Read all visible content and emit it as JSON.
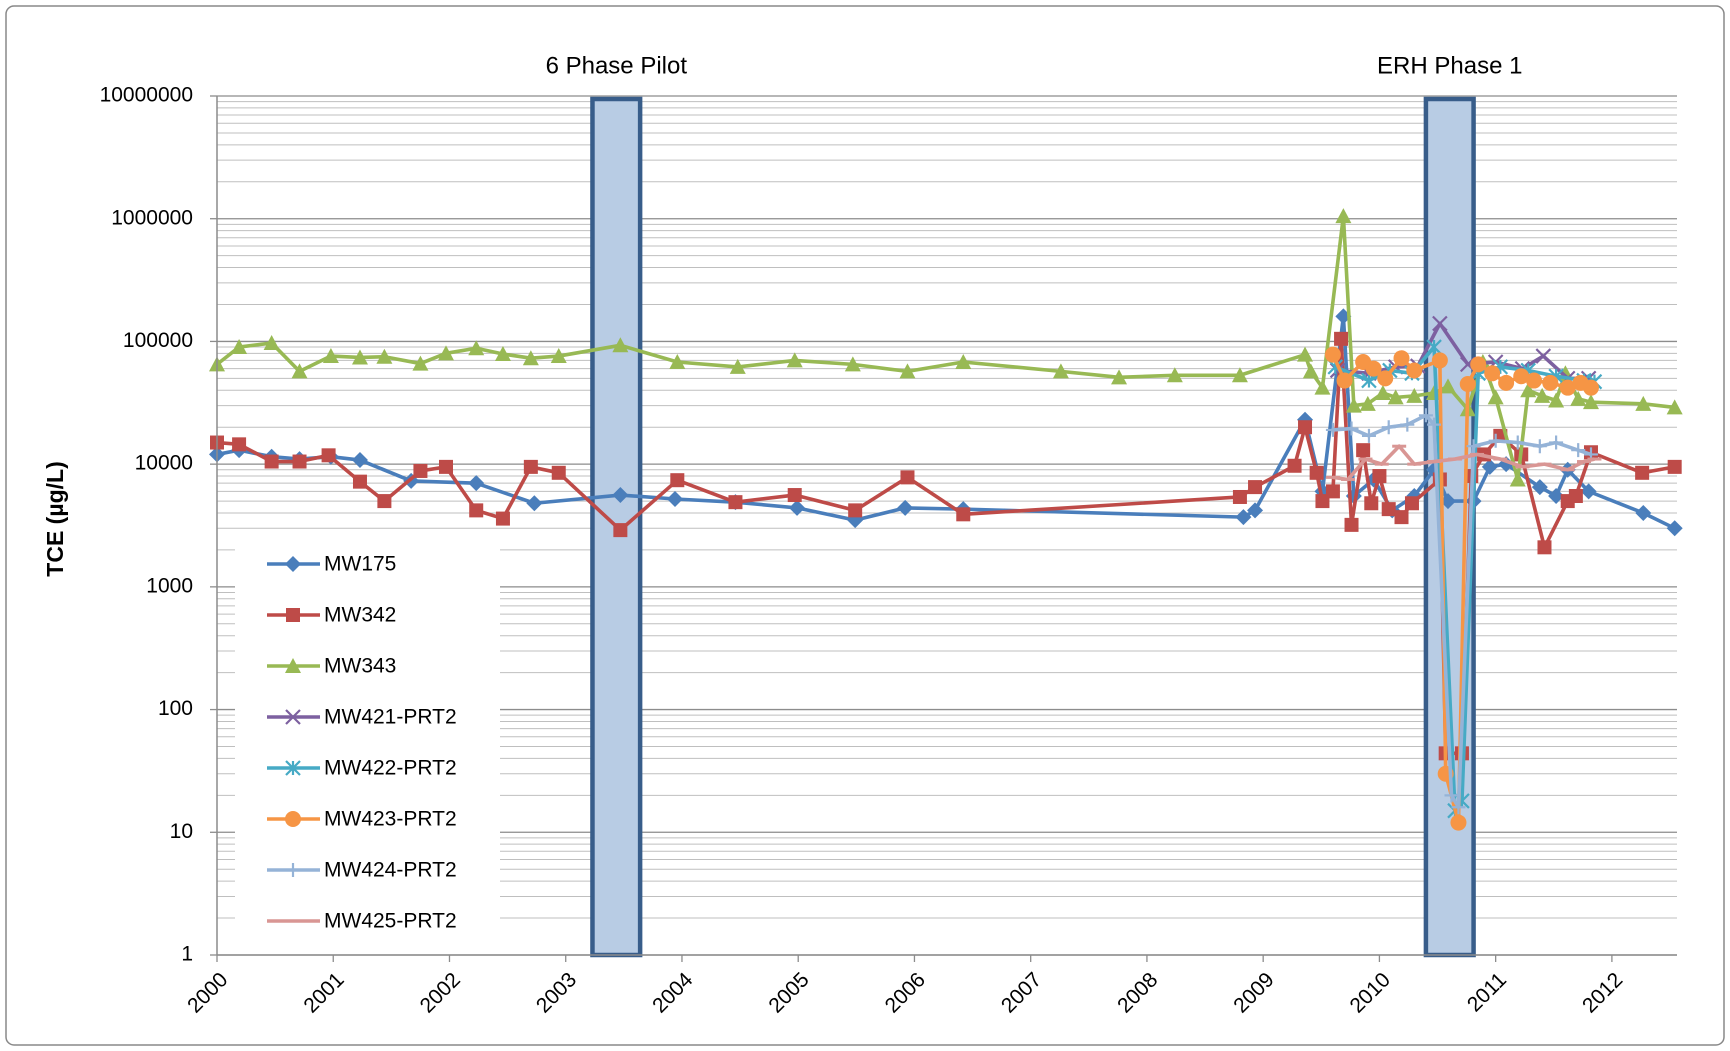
{
  "chart_data": {
    "type": "line",
    "y_label": "TCE (µg/L)",
    "log_y": true,
    "grid": true,
    "minor_grid": true,
    "legend": "lower-left",
    "xlim": [
      2000,
      2012.56
    ],
    "xticks": [
      2000,
      2001,
      2002,
      2003,
      2004,
      2005,
      2006,
      2007,
      2008,
      2009,
      2010,
      2011,
      2012
    ],
    "ylim": [
      1,
      10000000
    ],
    "yticks": [
      1,
      10,
      100,
      1000,
      10000,
      100000,
      1000000,
      10000000
    ],
    "shaded_periods": [
      {
        "label": "6 Phase Pilot",
        "start": 2003.23,
        "end": 2003.64
      },
      {
        "label": "ERH Phase 1",
        "start": 2010.4,
        "end": 2010.81
      }
    ],
    "series": [
      {
        "name": "MW175",
        "color": "#4a7ebb",
        "marker": "diamond",
        "x": [
          2000,
          2000.19,
          2000.47,
          2000.71,
          2000.98,
          2001.23,
          2001.67,
          2002.23,
          2002.73,
          2003.47,
          2003.94,
          2004.46,
          2004.99,
          2005.49,
          2005.92,
          2006.42,
          2008.83,
          2008.93,
          2009.36,
          2009.51,
          2009.69,
          2009.78,
          2009.95,
          2010.11,
          2010.3,
          2010.47,
          2010.59,
          2010.81,
          2010.95,
          2011.09,
          2011.38,
          2011.52,
          2011.62,
          2011.8,
          2012.27,
          2012.54
        ],
        "values": [
          12000,
          13000,
          11500,
          11000,
          11500,
          10800,
          7300,
          7000,
          4800,
          5600,
          5200,
          4900,
          4400,
          3500,
          4400,
          4300,
          3700,
          4200,
          23000,
          6000,
          160000,
          5500,
          7500,
          4200,
          5500,
          9000,
          5000,
          5000,
          9500,
          10000,
          6500,
          5500,
          9000,
          6000,
          4000,
          3000
        ]
      },
      {
        "name": "MW342",
        "color": "#be4b48",
        "marker": "square",
        "x": [
          2000,
          2000.19,
          2000.47,
          2000.71,
          2000.96,
          2001.23,
          2001.44,
          2001.75,
          2001.97,
          2002.23,
          2002.46,
          2002.7,
          2002.94,
          2003.47,
          2003.96,
          2004.46,
          2004.97,
          2005.49,
          2005.94,
          2006.42,
          2008.8,
          2008.93,
          2009.27,
          2009.36,
          2009.46,
          2009.51,
          2009.6,
          2009.67,
          2009.76,
          2009.86,
          2009.93,
          2010.0,
          2010.08,
          2010.19,
          2010.28,
          2010.52,
          2010.57,
          2010.71,
          2010.79,
          2010.9,
          2011.04,
          2011.22,
          2011.42,
          2011.62,
          2011.69,
          2011.82,
          2012.26,
          2012.54
        ],
        "values": [
          15000,
          14500,
          10500,
          10500,
          11800,
          7200,
          5000,
          8800,
          9500,
          4200,
          3600,
          9500,
          8500,
          2900,
          7400,
          4900,
          5600,
          4200,
          7800,
          3900,
          5400,
          6500,
          9700,
          20000,
          8500,
          5000,
          6000,
          105000,
          3200,
          13000,
          4800,
          8000,
          4300,
          3700,
          4800,
          7500,
          44,
          44,
          8000,
          12000,
          17000,
          12000,
          2100,
          5000,
          5500,
          12500,
          8500,
          9500
        ]
      },
      {
        "name": "MW343",
        "color": "#98b954",
        "marker": "triangle",
        "x": [
          2000,
          2000.19,
          2000.47,
          2000.71,
          2000.98,
          2001.23,
          2001.44,
          2001.75,
          2001.97,
          2002.23,
          2002.46,
          2002.7,
          2002.94,
          2003.47,
          2003.96,
          2004.48,
          2004.97,
          2005.47,
          2005.94,
          2006.42,
          2007.26,
          2007.76,
          2008.24,
          2008.8,
          2009.36,
          2009.41,
          2009.51,
          2009.69,
          2009.78,
          2009.9,
          2010.03,
          2010.14,
          2010.3,
          2010.47,
          2010.59,
          2010.76,
          2010.89,
          2011.0,
          2011.19,
          2011.28,
          2011.4,
          2011.52,
          2011.6,
          2011.71,
          2011.82,
          2012.27,
          2012.54
        ],
        "values": [
          65000,
          90000,
          97000,
          57000,
          76000,
          74000,
          75000,
          66000,
          80000,
          88000,
          79000,
          73000,
          76000,
          93000,
          68000,
          62000,
          70000,
          65000,
          57000,
          68000,
          57000,
          51000,
          53000,
          53000,
          78000,
          57000,
          42000,
          1050000,
          30000,
          31000,
          38000,
          35000,
          36000,
          38000,
          43000,
          28000,
          68000,
          35000,
          7500,
          40000,
          36000,
          33000,
          55000,
          34000,
          32000,
          31000,
          29000
        ]
      },
      {
        "name": "MW421-PRT2",
        "color": "#7d60a0",
        "marker": "x",
        "x": [
          2009.64,
          2009.91,
          2010.14,
          2010.33,
          2010.52,
          2010.76,
          2011.0,
          2011.23,
          2011.41,
          2011.62,
          2011.8
        ],
        "values": [
          58000,
          55000,
          62000,
          63000,
          140000,
          65000,
          68000,
          60000,
          76000,
          50000,
          50000
        ]
      },
      {
        "name": "MW422-PRT2",
        "color": "#46aac5",
        "marker": "asterisk",
        "x": [
          2009.62,
          2009.91,
          2010.09,
          2010.28,
          2010.47,
          2010.65,
          2010.71,
          2010.85,
          2011.04,
          2011.28,
          2011.52,
          2011.76,
          2011.85
        ],
        "values": [
          62000,
          48000,
          58000,
          55000,
          90000,
          15,
          18,
          55000,
          62000,
          58000,
          52000,
          48000,
          47000
        ]
      },
      {
        "name": "MW423-PRT2",
        "color": "#f69545",
        "marker": "circle",
        "x": [
          2009.6,
          2009.7,
          2009.86,
          2009.95,
          2010.05,
          2010.19,
          2010.3,
          2010.52,
          2010.57,
          2010.68,
          2010.76,
          2010.85,
          2010.97,
          2011.09,
          2011.22,
          2011.33,
          2011.47,
          2011.62,
          2011.73,
          2011.82
        ],
        "values": [
          78000,
          48000,
          68000,
          60000,
          50000,
          73000,
          58000,
          70000,
          30,
          12,
          45000,
          65000,
          55000,
          46000,
          52000,
          48000,
          46000,
          42000,
          46000,
          42000
        ]
      },
      {
        "name": "MW424-PRT2",
        "color": "#95b3d7",
        "marker": "plus",
        "x": [
          2009.6,
          2009.76,
          2009.91,
          2010.08,
          2010.24,
          2010.4,
          2010.47,
          2010.62,
          2010.68,
          2010.81,
          2011.0,
          2011.19,
          2011.38,
          2011.52,
          2011.71,
          2011.82
        ],
        "values": [
          19000,
          19500,
          17000,
          20000,
          21000,
          25000,
          21000,
          20,
          16,
          14000,
          15500,
          15000,
          14000,
          15000,
          13000,
          12000
        ]
      },
      {
        "name": "MW425-PRT2",
        "color": "#d99694",
        "marker": "dash",
        "x": [
          2009.6,
          2009.73,
          2009.88,
          2010.02,
          2010.17,
          2010.3,
          2010.47,
          2010.65,
          2010.84,
          2011.04,
          2011.23,
          2011.42,
          2011.62,
          2011.76,
          2011.85
        ],
        "values": [
          7800,
          7500,
          11000,
          10000,
          14000,
          10000,
          10500,
          11000,
          12000,
          11000,
          9500,
          10000,
          9000,
          10500,
          11000
        ]
      }
    ]
  }
}
